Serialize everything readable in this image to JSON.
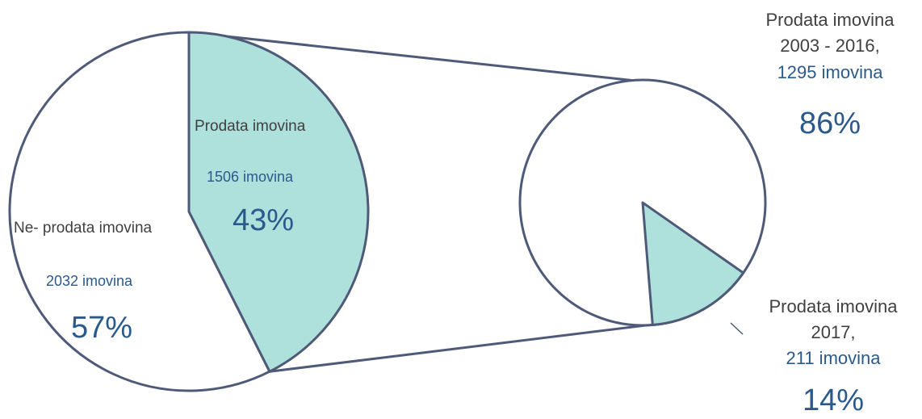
{
  "chart_data": {
    "type": "pie",
    "main": {
      "slices": [
        {
          "name": "Ne- prodata imovina",
          "count_label": "2032 imovina",
          "value": 2032,
          "percent_label": "57%",
          "percent": 57
        },
        {
          "name": "Prodata imovina",
          "count_label": "1506 imovina",
          "value": 1506,
          "percent_label": "43%",
          "percent": 43
        }
      ]
    },
    "breakdown": {
      "slices": [
        {
          "name_line1": "Prodata imovina",
          "name_line2": "2003 - 2016,",
          "count_label": "1295 imovina",
          "value": 1295,
          "percent_label": "86%",
          "percent": 86
        },
        {
          "name_line1": "Prodata imovina",
          "name_line2": "2017,",
          "count_label": "211 imovina",
          "value": 211,
          "percent_label": "14%",
          "percent": 14
        }
      ]
    },
    "colors": {
      "highlight": "#aee0dc",
      "base": "#ffffff",
      "stroke": "#4e5a78",
      "label_blue": "#2a5a8c",
      "label_gray": "#404040"
    }
  }
}
